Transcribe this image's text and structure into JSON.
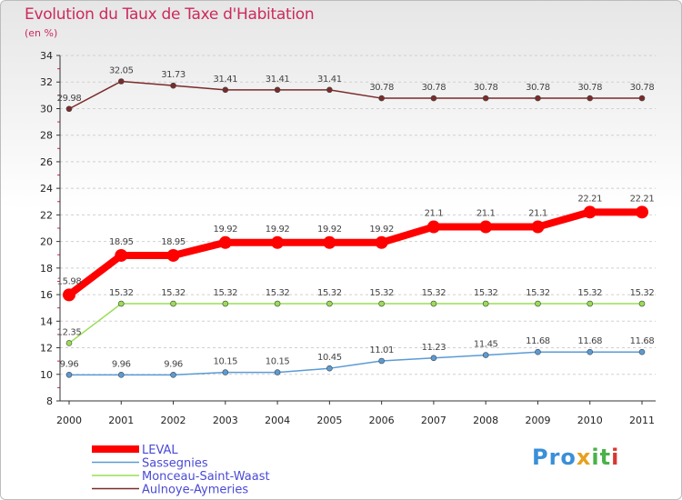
{
  "chart_data": {
    "type": "line",
    "title": "Evolution du Taux de Taxe d'Habitation",
    "subtitle": "(en %)",
    "xlabel": "",
    "ylabel": "",
    "ylim": [
      8,
      34
    ],
    "yticks": [
      8,
      10,
      12,
      14,
      16,
      18,
      20,
      22,
      24,
      26,
      28,
      30,
      32,
      34
    ],
    "grid": "horizontal dashed",
    "legend_position": "bottom-left",
    "categories": [
      "2000",
      "2001",
      "2002",
      "2003",
      "2004",
      "2005",
      "2006",
      "2007",
      "2008",
      "2009",
      "2010",
      "2011"
    ],
    "series": [
      {
        "name": "LEVAL",
        "color": "#ff0000",
        "emphasis": true,
        "values": [
          15.98,
          18.95,
          18.95,
          19.92,
          19.92,
          19.92,
          19.92,
          21.1,
          21.1,
          21.1,
          22.21,
          22.21
        ],
        "labels": [
          "15.98",
          "18.95",
          "18.95",
          "19.92",
          "19.92",
          "19.92",
          "19.92",
          "21.1",
          "21.1",
          "21.1",
          "22.21",
          "22.21"
        ]
      },
      {
        "name": "Sassegnies",
        "color": "#5b9bd5",
        "values": [
          9.96,
          9.96,
          9.96,
          10.15,
          10.15,
          10.45,
          11.01,
          11.23,
          11.45,
          11.68,
          11.68,
          11.68
        ],
        "labels": [
          "9.96",
          "9.96",
          "9.96",
          "10.15",
          "10.15",
          "10.45",
          "11.01",
          "11.23",
          "11.45",
          "11.68",
          "11.68",
          "11.68"
        ]
      },
      {
        "name": "Monceau-Saint-Waast",
        "color": "#99dd55",
        "values": [
          12.35,
          15.32,
          15.32,
          15.32,
          15.32,
          15.32,
          15.32,
          15.32,
          15.32,
          15.32,
          15.32,
          15.32
        ],
        "labels": [
          "12.35",
          "15.32",
          "15.32",
          "15.32",
          "15.32",
          "15.32",
          "15.32",
          "15.32",
          "15.32",
          "15.32",
          "15.32",
          "15.32"
        ]
      },
      {
        "name": "Aulnoye-Aymeries",
        "color": "#7a2b2b",
        "values": [
          29.98,
          32.05,
          31.73,
          31.41,
          31.41,
          31.41,
          30.78,
          30.78,
          30.78,
          30.78,
          30.78,
          30.78
        ],
        "labels": [
          "29.98",
          "32.05",
          "31.73",
          "31.41",
          "31.41",
          "31.41",
          "30.78",
          "30.78",
          "30.78",
          "30.78",
          "30.78",
          "30.78"
        ]
      }
    ]
  },
  "branding": {
    "logo_parts": [
      "Pro",
      "x",
      "it",
      "i"
    ]
  }
}
